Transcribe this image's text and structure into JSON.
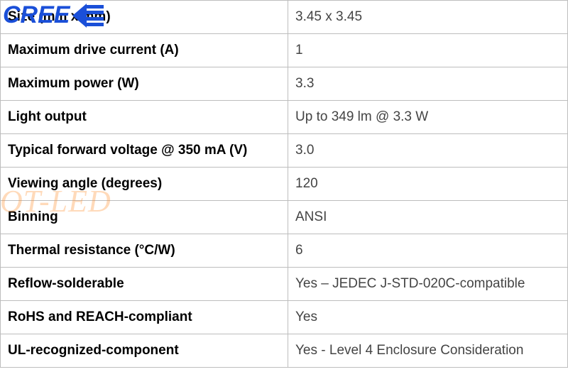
{
  "logo": {
    "text": "CREE",
    "color": "#1a4fd8"
  },
  "watermark": {
    "text": "OT-LED",
    "color": "rgba(255, 140, 40, 0.32)"
  },
  "table": {
    "border_color": "#bdbdbd",
    "label_color": "#000000",
    "value_color": "#444444",
    "label_fontsize": 19,
    "value_fontsize": 19,
    "rows": [
      {
        "label": "Size (mm x mm)",
        "value": "3.45 x 3.45"
      },
      {
        "label": "Maximum drive current (A)",
        "value": "1"
      },
      {
        "label": "Maximum power (W)",
        "value": "3.3"
      },
      {
        "label": "Light output",
        "value": "Up to 349 lm @ 3.3 W"
      },
      {
        "label": "Typical forward voltage @ 350 mA (V)",
        "value": "3.0"
      },
      {
        "label": "Viewing angle (degrees)",
        "value": "120"
      },
      {
        "label": "Binning",
        "value": "ANSI"
      },
      {
        "label": "Thermal resistance (°C/W)",
        "value": "6"
      },
      {
        "label": "Reflow-solderable",
        "value": "Yes – JEDEC J-STD-020C-compatible"
      },
      {
        "label": "RoHS and REACH-compliant",
        "value": "Yes"
      },
      {
        "label": "UL-recognized-component",
        "value": "Yes - Level 4 Enclosure Consideration"
      }
    ]
  }
}
